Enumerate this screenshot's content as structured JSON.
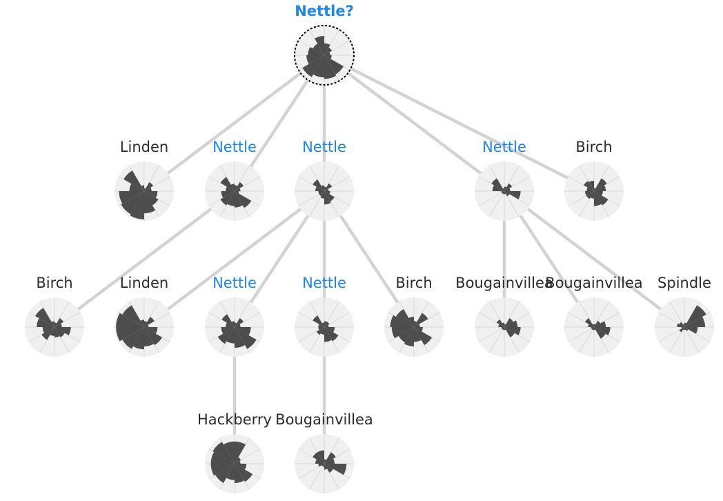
{
  "colors": {
    "nettle_label": "#1e86e8",
    "species_label": "#2b2b2b",
    "edge": "#d3d3d3",
    "disc_background": "#f0f0f0",
    "wedge_fill": "#4d4d4d",
    "query_ring": "#000000"
  },
  "root": {
    "id": "root",
    "label": "Nettle?",
    "query": true,
    "petals": [
      0.4,
      0.3,
      0.2,
      0.25,
      0.75,
      0.8,
      0.75,
      0.85,
      0.6,
      0.55,
      0.45,
      0.65
    ]
  },
  "nodes": [
    {
      "id": "n1",
      "parent": "root",
      "label": "Linden",
      "highlight": false,
      "petals": [
        0.1,
        0.35,
        0.25,
        0.45,
        0.55,
        0.75,
        0.95,
        0.9,
        0.85,
        0.5,
        0.8,
        0.2
      ]
    },
    {
      "id": "n2",
      "parent": "root",
      "label": "Nettle",
      "highlight": true,
      "petals": [
        0.2,
        0.35,
        0.2,
        0.15,
        0.65,
        0.55,
        0.5,
        0.55,
        0.45,
        0.3,
        0.55,
        0.25
      ]
    },
    {
      "id": "n3",
      "parent": "root",
      "label": "Nettle",
      "highlight": true,
      "petals": [
        0.15,
        0.3,
        0.15,
        0.2,
        0.4,
        0.45,
        0.25,
        0.2,
        0.2,
        0.3,
        0.45,
        0.2
      ]
    },
    {
      "id": "n4",
      "parent": "root",
      "label": "Nettle",
      "highlight": true,
      "petals": [
        0.15,
        0.3,
        0.2,
        0.55,
        0.2,
        0.1,
        0.1,
        0.1,
        0.1,
        0.4,
        0.5,
        0.1
      ]
    },
    {
      "id": "n5",
      "parent": "root",
      "label": "Birch",
      "highlight": false,
      "petals": [
        0.1,
        0.5,
        0.4,
        0.3,
        0.55,
        0.5,
        0.25,
        0.3,
        0.3,
        0.25,
        0.4,
        0.35
      ]
    },
    {
      "id": "n6",
      "parent": "n2",
      "label": "Birch",
      "highlight": false,
      "petals": [
        0.15,
        0.35,
        0.25,
        0.55,
        0.4,
        0.35,
        0.3,
        0.5,
        0.4,
        0.6,
        0.75,
        0.2
      ]
    },
    {
      "id": "n7",
      "parent": "n3",
      "label": "Linden",
      "highlight": false,
      "petals": [
        0.2,
        0.4,
        0.15,
        0.45,
        0.7,
        0.65,
        0.75,
        0.85,
        0.95,
        0.95,
        0.85,
        0.25
      ]
    },
    {
      "id": "n8",
      "parent": "n3",
      "label": "Nettle",
      "highlight": true,
      "petals": [
        0.15,
        0.35,
        0.2,
        0.55,
        0.85,
        0.7,
        0.55,
        0.65,
        0.45,
        0.3,
        0.5,
        0.2
      ]
    },
    {
      "id": "n9",
      "parent": "n3",
      "label": "Nettle",
      "highlight": true,
      "petals": [
        0.2,
        0.2,
        0.15,
        0.35,
        0.55,
        0.5,
        0.25,
        0.3,
        0.2,
        0.2,
        0.45,
        0.15
      ]
    },
    {
      "id": "n10",
      "parent": "n3",
      "label": "Birch",
      "highlight": false,
      "petals": [
        0.2,
        0.55,
        0.2,
        0.3,
        0.7,
        0.5,
        0.65,
        0.6,
        0.75,
        0.8,
        0.7,
        0.35
      ]
    },
    {
      "id": "n11",
      "parent": "n4",
      "label": "Bougainvillea",
      "highlight": false,
      "petals": [
        0.1,
        0.35,
        0.45,
        0.55,
        0.4,
        0.1,
        0.1,
        0.1,
        0.1,
        0.2,
        0.3,
        0.15
      ]
    },
    {
      "id": "n12",
      "parent": "n4",
      "label": "Bougainvillea",
      "highlight": false,
      "petals": [
        0.1,
        0.25,
        0.4,
        0.55,
        0.45,
        0.1,
        0.1,
        0.1,
        0.1,
        0.2,
        0.35,
        0.1
      ]
    },
    {
      "id": "n13",
      "parent": "n4",
      "label": "Spindle",
      "highlight": false,
      "petals": [
        0.15,
        0.85,
        0.7,
        0.45,
        0.15,
        0.1,
        0.1,
        0.2,
        0.1,
        0.25,
        0.2,
        0.1
      ]
    },
    {
      "id": "n14",
      "parent": "n8",
      "label": "Hackberry",
      "highlight": false,
      "petals": [
        0.75,
        0.25,
        0.2,
        0.4,
        0.7,
        0.65,
        0.55,
        0.75,
        0.8,
        0.8,
        0.85,
        0.75
      ]
    },
    {
      "id": "n15",
      "parent": "n9",
      "label": "Bougainvillea",
      "highlight": false,
      "petals": [
        0.15,
        0.45,
        0.35,
        0.75,
        0.35,
        0.2,
        0.1,
        0.1,
        0.2,
        0.3,
        0.45,
        0.45
      ]
    }
  ]
}
